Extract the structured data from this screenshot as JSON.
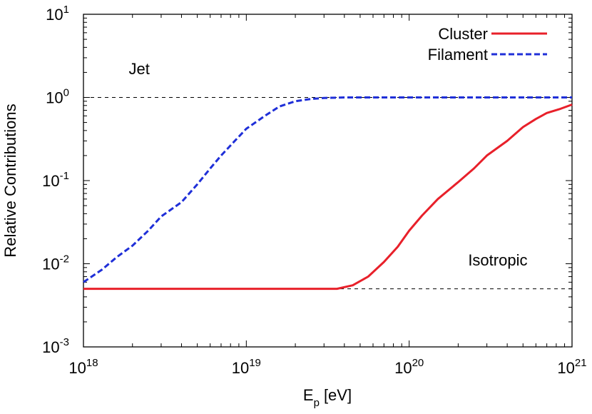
{
  "chart_data": {
    "type": "line",
    "x_scale": "log",
    "y_scale": "log",
    "xlim": [
      1e+18,
      1e+21
    ],
    "ylim": [
      0.001,
      10
    ],
    "xlabel": {
      "base": "E",
      "sub": "p",
      "unit": "[eV]"
    },
    "ylabel": "Relative Contributions",
    "x_ticks": [
      {
        "value": 1e+18,
        "base": "10",
        "exp": "18"
      },
      {
        "value": 1e+19,
        "base": "10",
        "exp": "19"
      },
      {
        "value": 1e+20,
        "base": "10",
        "exp": "20"
      },
      {
        "value": 1e+21,
        "base": "10",
        "exp": "21"
      }
    ],
    "y_ticks": [
      {
        "value": 0.001,
        "base": "10",
        "exp": "-3"
      },
      {
        "value": 0.01,
        "base": "10",
        "exp": "-2"
      },
      {
        "value": 0.1,
        "base": "10",
        "exp": "-1"
      },
      {
        "value": 1,
        "base": "10",
        "exp": "0"
      },
      {
        "value": 10,
        "base": "10",
        "exp": "1"
      }
    ],
    "reference_lines": [
      {
        "name": "jet-level",
        "y": 1
      },
      {
        "name": "isotropic-level",
        "y": 0.005
      }
    ],
    "annotations": [
      {
        "name": "jet",
        "text": "Jet",
        "x": 2.2e+18,
        "y": 1.9
      },
      {
        "name": "isotropic",
        "text": "Isotropic",
        "x": 3.5e+20,
        "y": 0.0095
      }
    ],
    "legend_position": "top-right",
    "series": [
      {
        "name": "Cluster",
        "color": "#e8202a",
        "style": "solid",
        "points": [
          [
            1e+18,
            0.005
          ],
          [
            2e+18,
            0.005
          ],
          [
            5e+18,
            0.005
          ],
          [
            1e+19,
            0.005
          ],
          [
            2e+19,
            0.005
          ],
          [
            3.6e+19,
            0.005
          ],
          [
            4.5e+19,
            0.0055
          ],
          [
            5.6e+19,
            0.007
          ],
          [
            7e+19,
            0.0105
          ],
          [
            8.5e+19,
            0.016
          ],
          [
            1e+20,
            0.025
          ],
          [
            1.2e+20,
            0.038
          ],
          [
            1.5e+20,
            0.06
          ],
          [
            2e+20,
            0.096
          ],
          [
            2.5e+20,
            0.14
          ],
          [
            3e+20,
            0.2
          ],
          [
            4e+20,
            0.3
          ],
          [
            5e+20,
            0.44
          ],
          [
            6e+20,
            0.55
          ],
          [
            7e+20,
            0.65
          ],
          [
            8.5e+20,
            0.73
          ],
          [
            1e+21,
            0.82
          ]
        ]
      },
      {
        "name": "Filament",
        "color": "#1f2fd8",
        "style": "dashed",
        "points": [
          [
            1e+18,
            0.006
          ],
          [
            1.3e+18,
            0.0085
          ],
          [
            1.6e+18,
            0.012
          ],
          [
            2e+18,
            0.0165
          ],
          [
            2.5e+18,
            0.025
          ],
          [
            3e+18,
            0.037
          ],
          [
            4e+18,
            0.055
          ],
          [
            5e+18,
            0.09
          ],
          [
            6e+18,
            0.14
          ],
          [
            7e+18,
            0.2
          ],
          [
            8.5e+18,
            0.3
          ],
          [
            1e+19,
            0.42
          ],
          [
            1.3e+19,
            0.6
          ],
          [
            1.6e+19,
            0.78
          ],
          [
            2e+19,
            0.9
          ],
          [
            2.5e+19,
            0.96
          ],
          [
            3e+19,
            0.985
          ],
          [
            4e+19,
            1.0
          ],
          [
            1e+20,
            1.0
          ],
          [
            1e+21,
            1.0
          ]
        ]
      }
    ]
  }
}
